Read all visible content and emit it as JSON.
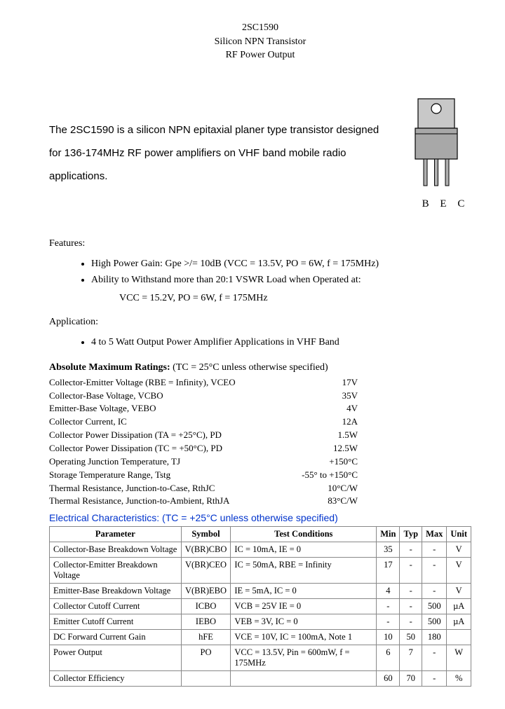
{
  "header": {
    "part": "2SC1590",
    "line2": "Silicon NPN Transistor",
    "line3": "RF Power Output"
  },
  "intro": "The 2SC1590 is a silicon NPN epitaxial planer type transistor designed for 136-174MHz RF power amplifiers on VHF band mobile radio applications.",
  "pins": "B E C",
  "package_svg": {
    "body_fill": "#a8a8a8",
    "tab_fill": "#c8c8c8",
    "lead_fill": "#b0b0b0",
    "stroke": "#000000"
  },
  "features_label": "Features:",
  "features": [
    "High Power Gain:  Gpe >/= 10dB (VCC = 13.5V, PO = 6W, f = 175MHz)",
    "Ability to Withstand more than 20:1 VSWR Load when Operated at:"
  ],
  "features_extra": "VCC = 15.2V, PO = 6W, f = 175MHz",
  "application_label": "Application:",
  "application": [
    "4 to 5 Watt Output Power Amplifier Applications in VHF Band"
  ],
  "ratings_title_bold": "Absolute Maximum Ratings:",
  "ratings_title_rest": " (TC =   25°C unless otherwise specified)",
  "ratings": [
    {
      "label": "Collector-Emitter Voltage (RBE = Infinity), VCEO",
      "val": "17V"
    },
    {
      "label": "Collector-Base Voltage, VCBO",
      "val": "35V"
    },
    {
      "label": "Emitter-Base Voltage, VEBO",
      "val": "4V"
    },
    {
      "label": "Collector Current, IC",
      "val": "12A"
    },
    {
      "label": "Collector Power Dissipation (TA = +25°C), PD",
      "val": "1.5W"
    },
    {
      "label": "Collector Power Dissipation (TC = +50°C), PD",
      "val": "12.5W"
    },
    {
      "label": "Operating Junction Temperature, TJ",
      "val": "+150°C"
    },
    {
      "label": "Storage Temperature Range, Tstg",
      "val": "-55° to +150°C"
    },
    {
      "label": "Thermal Resistance, Junction-to-Case, RthJC",
      "val": "10°C/W"
    },
    {
      "label": "Thermal Resistance, Junction-to-Ambient, RthJA",
      "val": "83°C/W"
    }
  ],
  "elec_title": "Electrical Characteristics: (TC = +25°C unless otherwise specified)",
  "elec_headers": [
    "Parameter",
    "Symbol",
    "Test Conditions",
    "Min",
    "Typ",
    "Max",
    "Unit"
  ],
  "elec_rows": [
    {
      "param": "Collector-Base Breakdown Voltage",
      "sym": "V(BR)CBO",
      "cond": "IC = 10mA, IE = 0",
      "min": "35",
      "typ": "-",
      "max": "-",
      "unit": "V"
    },
    {
      "param": "Collector-Emitter Breakdown Voltage",
      "sym": "V(BR)CEO",
      "cond": "IC = 50mA, RBE = Infinity",
      "min": "17",
      "typ": "-",
      "max": "-",
      "unit": "V"
    },
    {
      "param": "Emitter-Base Breakdown Voltage",
      "sym": "V(BR)EBO",
      "cond": "IE = 5mA, IC = 0",
      "min": "4",
      "typ": "-",
      "max": "-",
      "unit": "V"
    },
    {
      "param": "Collector Cutoff Current",
      "sym": "ICBO",
      "cond": "VCB = 25V IE = 0",
      "min": "-",
      "typ": "-",
      "max": "500",
      "unit": "µA"
    },
    {
      "param": "Emitter Cutoff Current",
      "sym": "IEBO",
      "cond": "VEB = 3V, IC = 0",
      "min": "-",
      "typ": "-",
      "max": "500",
      "unit": "µA"
    },
    {
      "param": "DC Forward Current Gain",
      "sym": "hFE",
      "cond": "VCE = 10V, IC = 100mA, Note 1",
      "min": "10",
      "typ": "50",
      "max": "180",
      "unit": ""
    },
    {
      "param": "Power Output",
      "sym": "PO",
      "cond": "VCC = 13.5V, Pin = 600mW, f = 175MHz",
      "min": "6",
      "typ": "7",
      "max": "-",
      "unit": "W"
    },
    {
      "param": "Collector Efficiency",
      "sym": "",
      "cond": "",
      "min": "60",
      "typ": "70",
      "max": "-",
      "unit": "%"
    }
  ]
}
